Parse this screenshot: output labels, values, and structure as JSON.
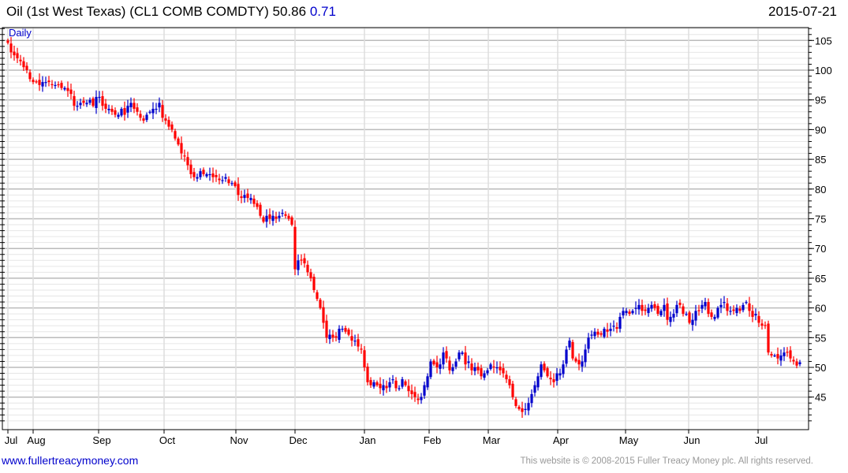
{
  "header": {
    "title": "Oil (1st West Texas) (CL1 COMB COMDTY) 50.86",
    "change": "0.71",
    "date": "2015-07-21"
  },
  "footer": {
    "link": "www.fullertreacymoney.com",
    "copyright": "This website is © 2008-2015 Fuller Treacy Money plc. All rights reserved."
  },
  "colors": {
    "up": "#0000cc",
    "down": "#ff0000",
    "label": "#0000cc"
  },
  "chart_data": {
    "type": "candlestick",
    "title": "Oil (1st West Texas) (CL1 COMB COMDTY)",
    "period_label": "Daily",
    "last": 50.86,
    "change": 0.71,
    "ylim": [
      40,
      107
    ],
    "y_ticks": [
      45,
      50,
      55,
      60,
      65,
      70,
      75,
      80,
      85,
      90,
      95,
      100,
      105
    ],
    "x_ticks": [
      "Jul",
      "Aug",
      "Sep",
      "Oct",
      "Nov",
      "Dec",
      "Jan",
      "Feb",
      "Mar",
      "Apr",
      "May",
      "Jun",
      "Jul"
    ],
    "grid": true,
    "close": [
      104.6,
      103,
      102.5,
      102,
      101.5,
      100.5,
      100,
      98.5,
      98,
      98,
      97.5,
      98,
      98,
      98,
      97.5,
      97.5,
      97.5,
      97,
      97,
      96.5,
      96,
      94,
      94,
      94.5,
      94.5,
      94.5,
      95,
      94,
      95.5,
      95.5,
      94,
      93.5,
      93.5,
      93,
      92.5,
      92.5,
      93.5,
      92.5,
      94,
      94.5,
      93.5,
      93,
      92,
      91.5,
      92.5,
      93,
      93.5,
      93.5,
      94.5,
      92,
      91.5,
      90.5,
      90,
      88.5,
      87.5,
      86,
      85.5,
      84,
      82.5,
      82,
      82,
      83,
      82.5,
      82.5,
      82.5,
      82,
      82,
      81.5,
      81.5,
      82,
      81,
      81,
      80.5,
      79,
      78.5,
      79,
      78.5,
      78.5,
      77.5,
      77,
      75.5,
      74.5,
      75.5,
      75,
      75.5,
      75,
      75.5,
      76,
      75.5,
      75,
      74,
      66.5,
      68,
      68,
      67.5,
      66,
      65,
      63,
      61.5,
      60,
      57.5,
      55,
      55.5,
      55,
      55,
      56.5,
      56.5,
      56,
      55.5,
      54.5,
      54.5,
      53.5,
      53,
      50,
      47.5,
      47,
      47.5,
      47,
      46.5,
      47,
      46.5,
      47.5,
      48,
      46.5,
      46.5,
      48,
      47,
      46,
      45.5,
      45,
      44.5,
      45,
      47,
      48.5,
      51,
      50.5,
      50,
      50.5,
      52.5,
      51.5,
      49.5,
      50,
      51,
      52.5,
      52.5,
      50.5,
      51,
      49.5,
      50,
      49.5,
      48.5,
      49,
      49.5,
      50.5,
      50,
      50,
      49.5,
      49,
      48,
      47,
      45,
      43.5,
      43,
      42.5,
      43,
      44,
      45.5,
      47,
      48.5,
      50.5,
      49.5,
      48.5,
      48,
      47.5,
      49,
      49,
      50.5,
      53,
      54.5,
      51.5,
      51,
      50.5,
      51,
      53,
      55,
      55.5,
      56,
      55.5,
      55.5,
      56.5,
      56,
      56.5,
      57,
      56.5,
      58.5,
      59.5,
      59.5,
      59,
      59.5,
      60,
      60.5,
      59.5,
      59.5,
      60,
      60.5,
      60,
      59,
      59.5,
      60.5,
      58,
      58.5,
      59,
      60.5,
      60.5,
      59,
      59,
      57.5,
      58,
      59.5,
      59.5,
      60.5,
      61,
      59,
      58.5,
      58.5,
      60,
      60.5,
      61,
      59.5,
      59.5,
      59.5,
      60,
      59.5,
      60.5,
      61,
      59.5,
      58.5,
      59,
      57.5,
      57,
      57,
      52.5,
      52,
      52,
      51.5,
      52,
      52.5,
      52.5,
      51.5,
      51,
      50.3,
      50.86
    ]
  }
}
